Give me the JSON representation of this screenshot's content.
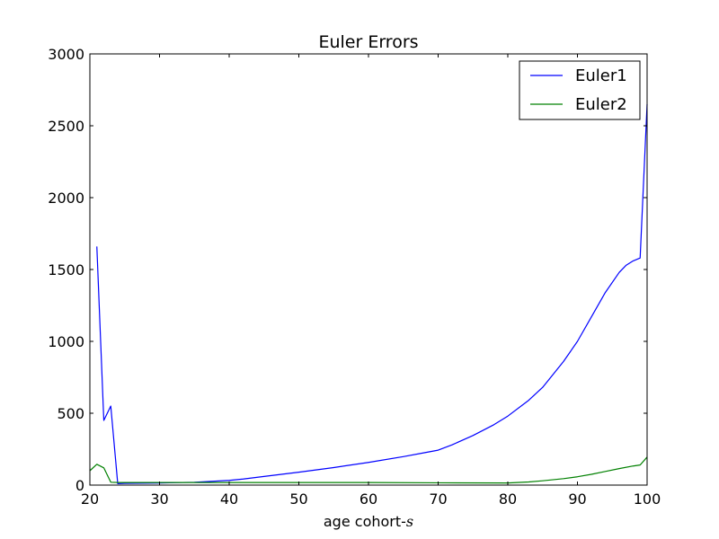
{
  "chart_data": {
    "type": "line",
    "title": "Euler Errors",
    "xlabel": "age cohort-",
    "xlabel_math_var": "s",
    "ylabel": "",
    "xlim": [
      20,
      100
    ],
    "ylim": [
      0,
      3000
    ],
    "xticks": [
      20,
      30,
      40,
      50,
      60,
      70,
      80,
      90,
      100
    ],
    "yticks": [
      0,
      500,
      1000,
      1500,
      2000,
      2500,
      3000
    ],
    "grid": false,
    "legend_position": "top-right",
    "series": [
      {
        "name": "Euler1",
        "color": "#0000ff",
        "x": [
          21,
          22,
          23,
          24,
          25,
          30,
          35,
          40,
          42,
          45,
          50,
          55,
          60,
          65,
          68,
          70,
          72,
          75,
          78,
          80,
          83,
          85,
          88,
          90,
          92,
          94,
          96,
          97,
          98,
          99,
          100
        ],
        "y": [
          1660,
          450,
          550,
          10,
          12,
          15,
          20,
          33,
          42,
          60,
          90,
          122,
          158,
          198,
          225,
          243,
          280,
          345,
          420,
          480,
          590,
          680,
          860,
          1000,
          1170,
          1340,
          1480,
          1530,
          1560,
          1580,
          2650
        ]
      },
      {
        "name": "Euler2",
        "color": "#008000",
        "x": [
          20,
          21,
          22,
          23,
          24,
          30,
          40,
          50,
          60,
          70,
          80,
          83,
          85,
          88,
          90,
          92,
          94,
          96,
          98,
          99,
          100
        ],
        "y": [
          100,
          145,
          120,
          20,
          18,
          18,
          18,
          18,
          18,
          16,
          15,
          22,
          30,
          45,
          58,
          75,
          95,
          115,
          133,
          140,
          195
        ]
      }
    ]
  }
}
